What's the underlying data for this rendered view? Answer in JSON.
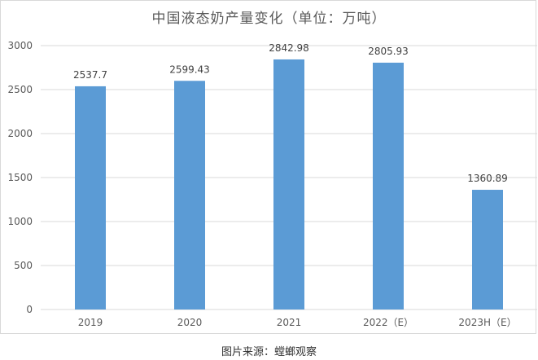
{
  "chart_data": {
    "type": "bar",
    "title": "中国液态奶产量变化（单位：万吨）",
    "categories": [
      "2019",
      "2020",
      "2021",
      "2022（E）",
      "2023H（E）"
    ],
    "values": [
      2537.7,
      2599.43,
      2842.98,
      2805.93,
      1360.89
    ],
    "value_labels": [
      "2537.7",
      "2599.43",
      "2842.98",
      "2805.93",
      "1360.89"
    ],
    "yticks": [
      "0",
      "500",
      "1000",
      "1500",
      "2000",
      "2500",
      "3000"
    ],
    "ylim": [
      0,
      3000
    ],
    "grid": true,
    "legend": "none",
    "bar_color": "#5b9bd5",
    "grid_color": "#d9d9d9"
  },
  "source_text": "图片来源：螳螂观察"
}
